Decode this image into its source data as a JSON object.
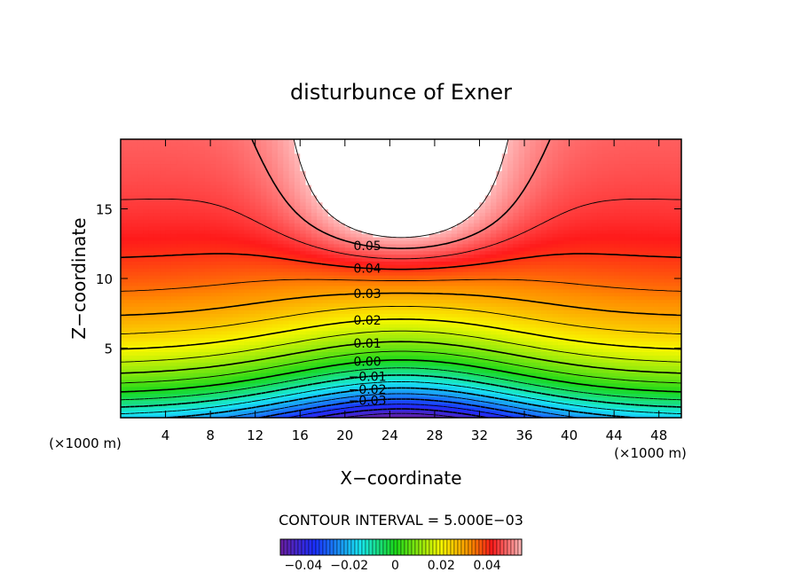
{
  "chart_data": {
    "type": "heatmap",
    "title": "disturbunce of Exner",
    "xlabel": "X−coordinate",
    "ylabel": "Z−coordinate",
    "x_unit": "(×1000 m)",
    "y_unit": "(×1000 m)",
    "xlim": [
      0,
      50
    ],
    "ylim": [
      0,
      20
    ],
    "x_ticks": [
      4,
      8,
      12,
      16,
      20,
      24,
      28,
      32,
      36,
      40,
      44,
      48
    ],
    "y_ticks": [
      5,
      10,
      15
    ],
    "x_tick_labels": [
      "4",
      "8",
      "12",
      "16",
      "20",
      "24",
      "28",
      "32",
      "36",
      "40",
      "44",
      "48"
    ],
    "y_tick_labels": [
      "5",
      "10",
      "15"
    ],
    "contour_interval_text": "CONTOUR INTERVAL = 5.000E−03",
    "contour_interval": 0.005,
    "contour_labels": [
      {
        "text": "0.05",
        "value": 0.05
      },
      {
        "text": "0.04",
        "value": 0.04
      },
      {
        "text": "0.03",
        "value": 0.03
      },
      {
        "text": "0.02",
        "value": 0.02
      },
      {
        "text": "0.01",
        "value": 0.01
      },
      {
        "text": "0.00",
        "value": 0.0
      },
      {
        "text": "−0.01",
        "value": -0.01
      },
      {
        "text": "−0.02",
        "value": -0.02
      },
      {
        "text": "−0.03",
        "value": -0.03
      }
    ],
    "colorbar": {
      "min": -0.05,
      "max": 0.055,
      "tick_values": [
        -0.04,
        -0.02,
        0,
        0.02,
        0.04
      ],
      "tick_labels": [
        "−0.04",
        "−0.02",
        "0",
        "0.02",
        "0.04"
      ]
    },
    "field_max_region_value": 0.055,
    "colors": {
      "min": "#6a1ea0",
      "blue": "#1a2fff",
      "cyan": "#18e8f0",
      "green": "#1ad81a",
      "yellow": "#f8f800",
      "orange": "#ff8c00",
      "red": "#ff1a1a",
      "pink": "#ffb8b8"
    }
  }
}
